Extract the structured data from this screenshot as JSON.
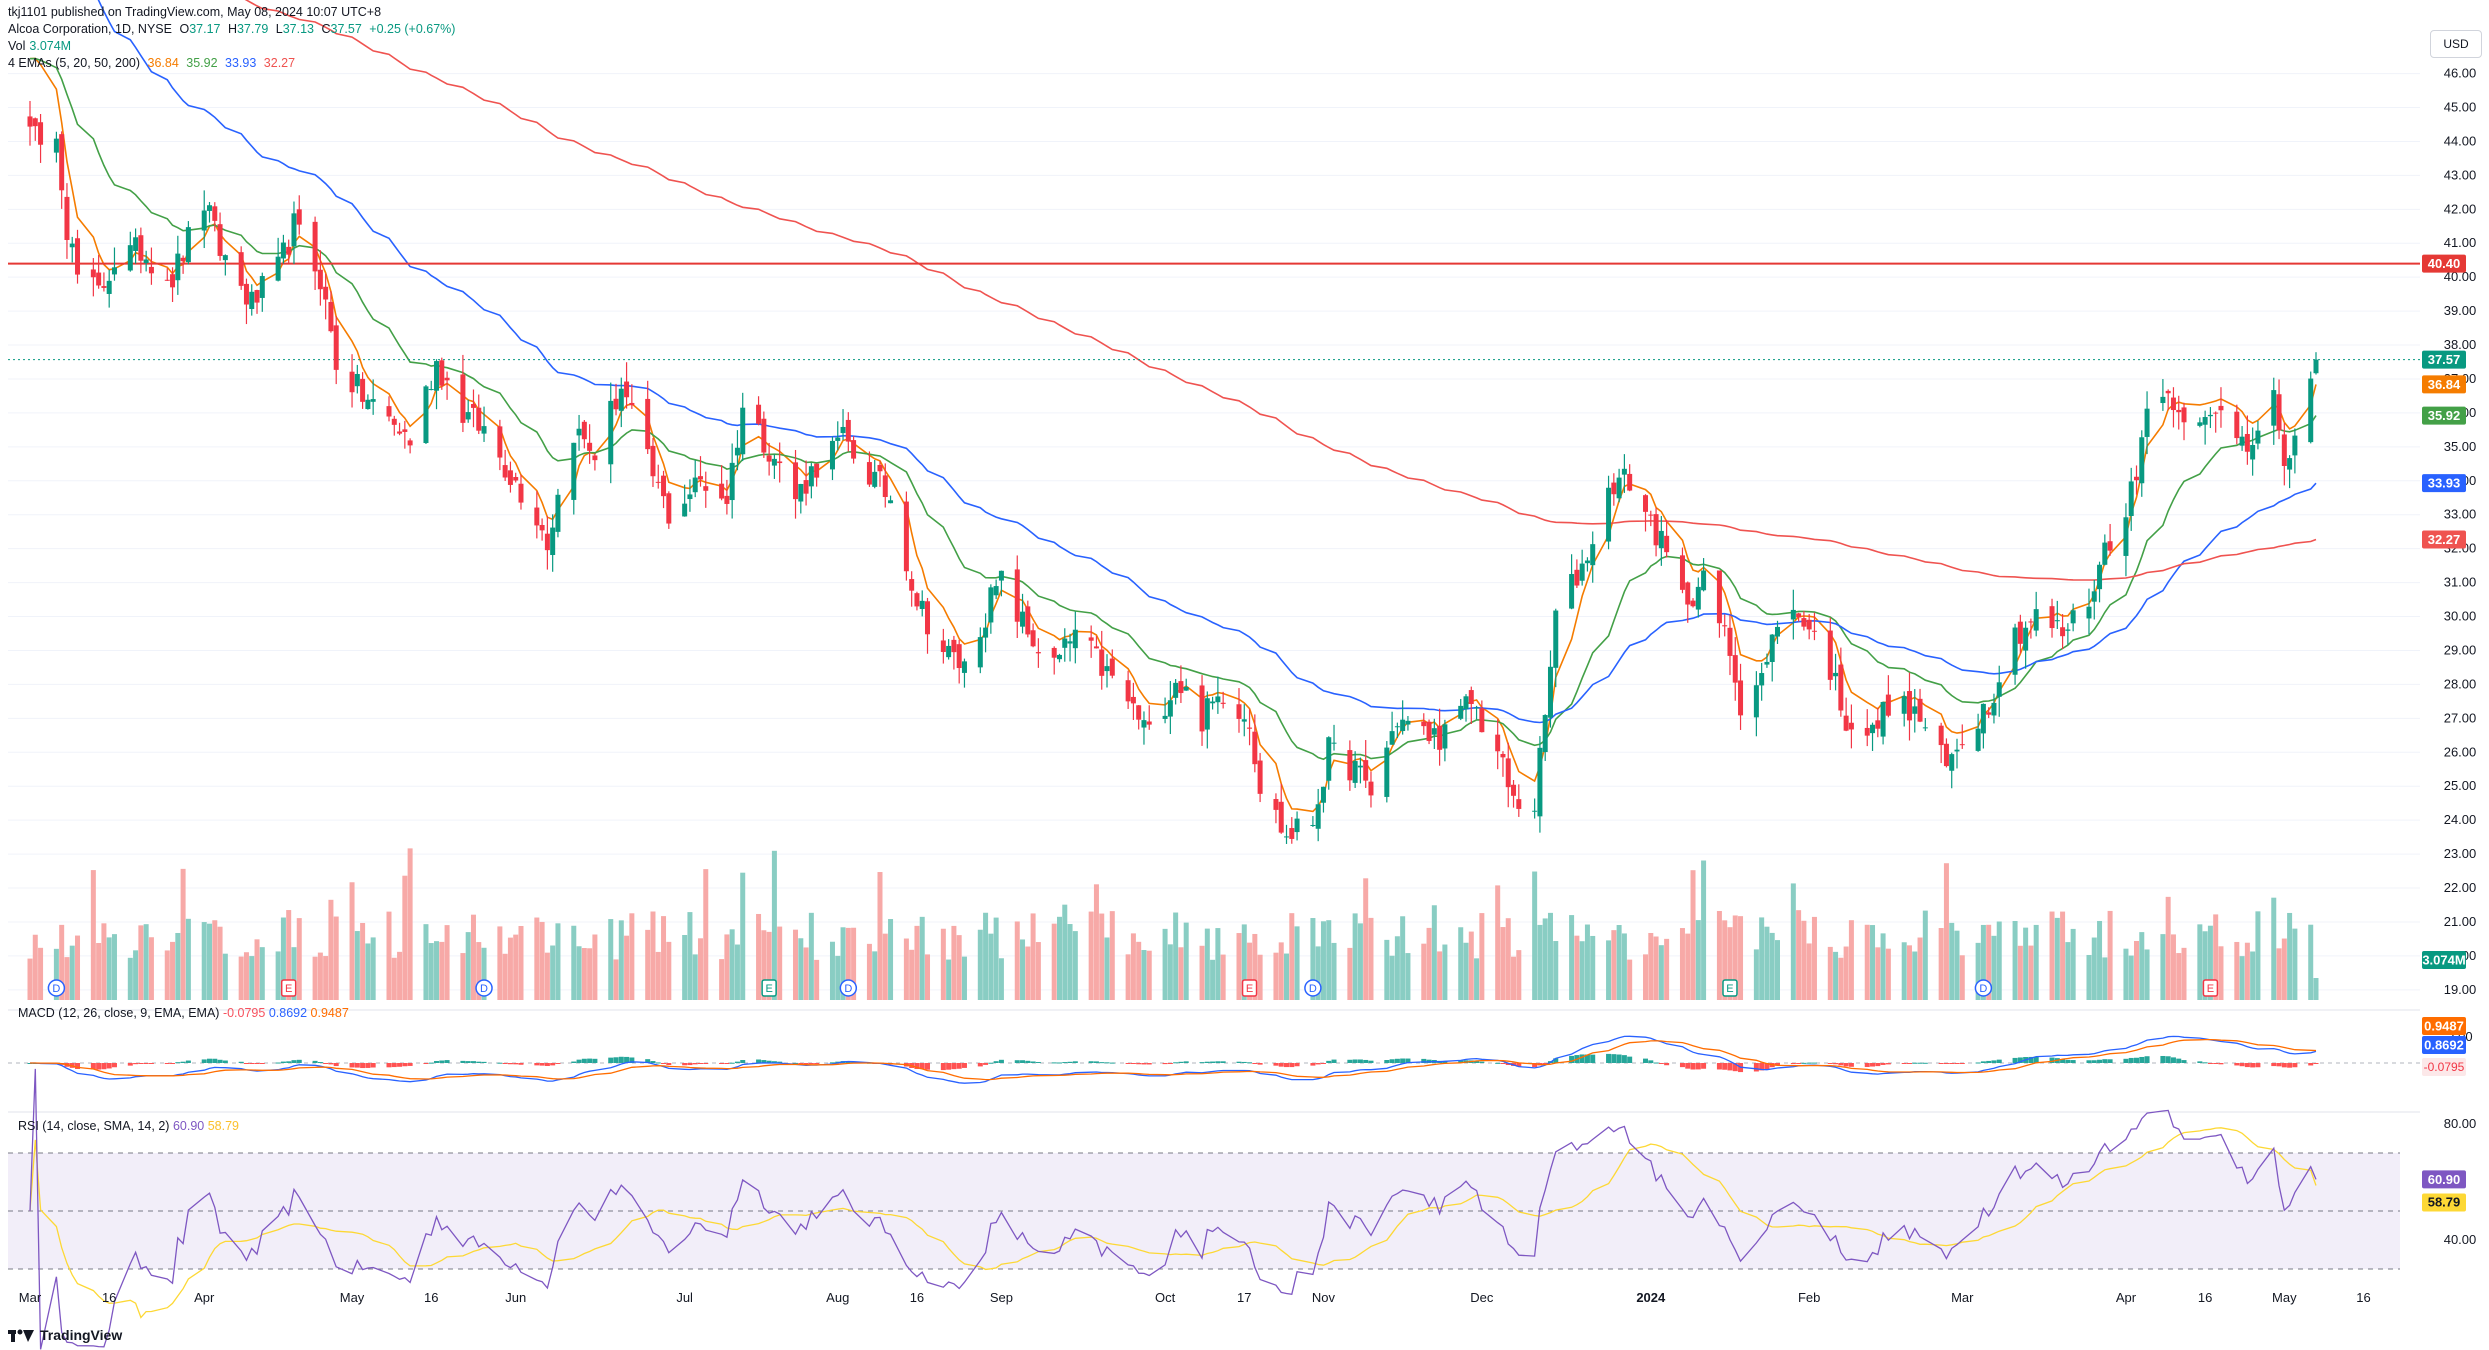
{
  "header": {
    "published": "tkj1101 published on TradingView.com, May 08, 2024 10:07 UTC+8",
    "symbol": "Alcoa Corporation, 1D, NYSE",
    "open_label": "O",
    "open": "37.17",
    "high_label": "H",
    "high": "37.79",
    "low_label": "L",
    "low": "37.13",
    "close_label": "C",
    "close": "37.57",
    "change": "+0.25 (+0.67%)",
    "vol_label": "Vol",
    "vol": "3.074M",
    "ema_label": "4 EMAs (5, 20, 50, 200)",
    "ema5": "36.84",
    "ema20": "35.92",
    "ema50": "33.93",
    "ema200": "32.27",
    "macd_label": "MACD (12, 26, close, 9, EMA, EMA)",
    "macd_hist": "-0.0795",
    "macd_line": "0.8692",
    "macd_signal": "0.9487",
    "rsi_label": "RSI (14, close, SMA, 14, 2)",
    "rsi": "60.90",
    "rsi_ma": "58.79"
  },
  "currency": "USD",
  "brand": "TradingView",
  "colors": {
    "up": "#089981",
    "down": "#f23645",
    "vol_up": "#89cdc3",
    "vol_down": "#f7a9a7",
    "ema5": "#f57c00",
    "ema20": "#43a047",
    "ema50": "#2962ff",
    "ema200": "#ef5350",
    "resistance": "#e53935",
    "rsi_line": "#7e57c2",
    "rsi_ma": "#fdd835"
  },
  "price_labels": {
    "resistance": "40.40",
    "close": "37.57",
    "ema5": "36.84",
    "ema20": "35.92",
    "ema50": "33.93",
    "ema200": "32.27",
    "vol": "3.074M",
    "macd_signal": "0.9487",
    "macd_line": "0.8692",
    "macd_hist": "-0.0795",
    "rsi": "60.90",
    "rsi_ma": "58.79"
  },
  "chart_data": {
    "type": "candlestick",
    "title": "Alcoa Corporation, 1D, NYSE",
    "y_ticks": [
      "46.00",
      "45.00",
      "44.00",
      "43.00",
      "42.00",
      "41.00",
      "40.00",
      "39.00",
      "38.00",
      "37.00",
      "36.00",
      "35.00",
      "34.00",
      "33.00",
      "32.00",
      "31.00",
      "30.00",
      "29.00",
      "28.00",
      "27.00",
      "26.00",
      "25.00",
      "24.00",
      "23.00",
      "22.00",
      "21.00",
      "20.00",
      "19.00"
    ],
    "ylim": [
      18.7,
      46.4
    ],
    "x_ticks": [
      "Mar",
      "16",
      "Apr",
      "May",
      "16",
      "Jun",
      "Jul",
      "Aug",
      "16",
      "Sep",
      "Oct",
      "17",
      "Nov",
      "Dec",
      "2024",
      "Feb",
      "Mar",
      "Apr",
      "16",
      "May",
      "16"
    ],
    "resistance_level": 40.4,
    "close_anchors": [
      [
        "2023-03-01",
        44.8
      ],
      [
        "2023-03-03",
        43.5
      ],
      [
        "2023-03-06",
        44.5
      ],
      [
        "2023-03-08",
        41.5
      ],
      [
        "2023-03-10",
        40.0
      ],
      [
        "2023-03-14",
        39.5
      ],
      [
        "2023-03-17",
        40.5
      ],
      [
        "2023-03-22",
        40.8
      ],
      [
        "2023-03-28",
        40.0
      ],
      [
        "2023-04-03",
        42.2
      ],
      [
        "2023-04-06",
        40.8
      ],
      [
        "2023-04-12",
        39.2
      ],
      [
        "2023-04-17",
        40.2
      ],
      [
        "2023-04-20",
        41.5
      ],
      [
        "2023-04-25",
        40.0
      ],
      [
        "2023-04-28",
        37.5
      ],
      [
        "2023-05-03",
        36.5
      ],
      [
        "2023-05-08",
        35.8
      ],
      [
        "2023-05-12",
        35.2
      ],
      [
        "2023-05-17",
        37.5
      ],
      [
        "2023-05-22",
        36.0
      ],
      [
        "2023-05-26",
        35.5
      ],
      [
        "2023-05-31",
        34.2
      ],
      [
        "2023-06-05",
        33.0
      ],
      [
        "2023-06-07",
        32.2
      ],
      [
        "2023-06-12",
        35.5
      ],
      [
        "2023-06-16",
        34.8
      ],
      [
        "2023-06-21",
        36.8
      ],
      [
        "2023-06-26",
        34.5
      ],
      [
        "2023-06-30",
        33.0
      ],
      [
        "2023-07-06",
        34.0
      ],
      [
        "2023-07-11",
        33.5
      ],
      [
        "2023-07-14",
        36.2
      ],
      [
        "2023-07-19",
        35.0
      ],
      [
        "2023-07-24",
        33.5
      ],
      [
        "2023-07-28",
        34.5
      ],
      [
        "2023-08-02",
        35.2
      ],
      [
        "2023-08-07",
        34.2
      ],
      [
        "2023-08-11",
        33.5
      ],
      [
        "2023-08-16",
        30.5
      ],
      [
        "2023-08-21",
        29.0
      ],
      [
        "2023-08-25",
        28.5
      ],
      [
        "2023-08-30",
        30.5
      ],
      [
        "2023-09-01",
        31.0
      ],
      [
        "2023-09-06",
        29.5
      ],
      [
        "2023-09-11",
        28.5
      ],
      [
        "2023-09-15",
        29.5
      ],
      [
        "2023-09-20",
        28.5
      ],
      [
        "2023-09-25",
        27.5
      ],
      [
        "2023-09-29",
        26.5
      ],
      [
        "2023-10-04",
        28.2
      ],
      [
        "2023-10-09",
        27.0
      ],
      [
        "2023-10-13",
        27.8
      ],
      [
        "2023-10-18",
        27.0
      ],
      [
        "2023-10-20",
        25.0
      ],
      [
        "2023-10-25",
        23.5
      ],
      [
        "2023-10-30",
        24.0
      ],
      [
        "2023-11-02",
        26.0
      ],
      [
        "2023-11-07",
        25.5
      ],
      [
        "2023-11-10",
        24.8
      ],
      [
        "2023-11-15",
        27.0
      ],
      [
        "2023-11-20",
        26.5
      ],
      [
        "2023-11-24",
        26.5
      ],
      [
        "2023-11-29",
        27.5
      ],
      [
        "2023-12-04",
        26.0
      ],
      [
        "2023-12-07",
        24.5
      ],
      [
        "2023-12-11",
        24.5
      ],
      [
        "2023-12-13",
        27.0
      ],
      [
        "2023-12-15",
        30.0
      ],
      [
        "2023-12-20",
        31.5
      ],
      [
        "2023-12-26",
        34.0
      ],
      [
        "2023-12-29",
        34.0
      ],
      [
        "2024-01-03",
        32.5
      ],
      [
        "2024-01-08",
        30.5
      ],
      [
        "2024-01-12",
        31.0
      ],
      [
        "2024-01-17",
        29.0
      ],
      [
        "2024-01-19",
        27.5
      ],
      [
        "2024-01-24",
        28.5
      ],
      [
        "2024-01-26",
        30.0
      ],
      [
        "2024-01-31",
        30.0
      ],
      [
        "2024-02-05",
        28.5
      ],
      [
        "2024-02-08",
        27.0
      ],
      [
        "2024-02-13",
        26.5
      ],
      [
        "2024-02-16",
        27.5
      ],
      [
        "2024-02-22",
        27.0
      ],
      [
        "2024-02-27",
        25.5
      ],
      [
        "2024-03-01",
        26.5
      ],
      [
        "2024-03-06",
        27.5
      ],
      [
        "2024-03-11",
        29.5
      ],
      [
        "2024-03-15",
        30.0
      ],
      [
        "2024-03-20",
        29.5
      ],
      [
        "2024-03-25",
        30.5
      ],
      [
        "2024-03-28",
        32.0
      ],
      [
        "2024-04-03",
        34.0
      ],
      [
        "2024-04-05",
        36.5
      ],
      [
        "2024-04-10",
        36.5
      ],
      [
        "2024-04-15",
        35.5
      ],
      [
        "2024-04-19",
        36.0
      ],
      [
        "2024-04-24",
        35.2
      ],
      [
        "2024-04-29",
        36.5
      ],
      [
        "2024-05-01",
        34.0
      ],
      [
        "2024-05-03",
        35.5
      ],
      [
        "2024-05-07",
        37.57
      ]
    ],
    "ema_series": [
      {
        "name": "EMA 5",
        "last": 36.84
      },
      {
        "name": "EMA 20",
        "last": 35.92
      },
      {
        "name": "EMA 50",
        "last": 33.93
      },
      {
        "name": "EMA 200",
        "last": 32.27
      }
    ],
    "volume_last": "3.074M",
    "event_markers": [
      {
        "date": "2023-03-06",
        "label": "D"
      },
      {
        "date": "2023-04-19",
        "label": "E"
      },
      {
        "date": "2023-05-26",
        "label": "D"
      },
      {
        "date": "2023-07-19",
        "label": "E"
      },
      {
        "date": "2023-08-03",
        "label": "D"
      },
      {
        "date": "2023-10-18",
        "label": "E"
      },
      {
        "date": "2023-10-30",
        "label": "D"
      },
      {
        "date": "2024-01-17",
        "label": "E"
      },
      {
        "date": "2024-03-05",
        "label": "D"
      },
      {
        "date": "2024-04-17",
        "label": "E"
      }
    ],
    "macd": {
      "hist": -0.0795,
      "line": 0.8692,
      "signal": 0.9487,
      "y_ticks": [
        "2.00"
      ]
    },
    "rsi": {
      "value": 60.9,
      "ma": 58.79,
      "y_ticks": [
        "80.00",
        "40.00"
      ],
      "band": [
        30,
        70
      ]
    }
  }
}
